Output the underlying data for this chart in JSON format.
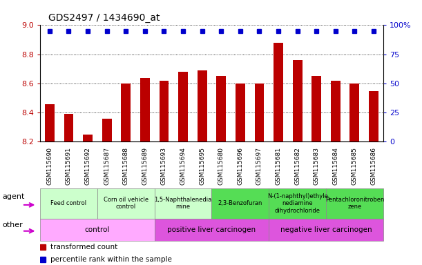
{
  "title": "GDS2497 / 1434690_at",
  "samples": [
    "GSM115690",
    "GSM115691",
    "GSM115692",
    "GSM115687",
    "GSM115688",
    "GSM115689",
    "GSM115693",
    "GSM115694",
    "GSM115695",
    "GSM115680",
    "GSM115696",
    "GSM115697",
    "GSM115681",
    "GSM115682",
    "GSM115683",
    "GSM115684",
    "GSM115685",
    "GSM115686"
  ],
  "bar_values": [
    8.46,
    8.39,
    8.25,
    8.36,
    8.6,
    8.64,
    8.62,
    8.68,
    8.69,
    8.65,
    8.6,
    8.6,
    8.88,
    8.76,
    8.65,
    8.62,
    8.6,
    8.55
  ],
  "percentile_values": [
    95,
    95,
    95,
    95,
    95,
    95,
    95,
    95,
    95,
    95,
    95,
    95,
    95,
    95,
    95,
    95,
    95,
    95
  ],
  "ylim": [
    8.2,
    9.0
  ],
  "yticks": [
    8.2,
    8.4,
    8.6,
    8.8,
    9.0
  ],
  "right_yticks_labels": [
    "0",
    "25",
    "50",
    "75",
    "100%"
  ],
  "right_yticks_vals": [
    0,
    25,
    50,
    75,
    100
  ],
  "right_ylim": [
    0,
    100
  ],
  "bar_color": "#bb0000",
  "percentile_color": "#0000cc",
  "agent_groups": [
    {
      "label": "Feed control",
      "start": 0,
      "end": 3,
      "color": "#ccffcc"
    },
    {
      "label": "Corn oil vehicle\ncontrol",
      "start": 3,
      "end": 6,
      "color": "#ccffcc"
    },
    {
      "label": "1,5-Naphthalenedia\nmine",
      "start": 6,
      "end": 9,
      "color": "#ccffcc"
    },
    {
      "label": "2,3-Benzofuran",
      "start": 9,
      "end": 12,
      "color": "#55dd55"
    },
    {
      "label": "N-(1-naphthyl)ethyle\nnediamine\ndihydrochloride",
      "start": 12,
      "end": 15,
      "color": "#55dd55"
    },
    {
      "label": "Pentachloronitroben\nzene",
      "start": 15,
      "end": 18,
      "color": "#55dd55"
    }
  ],
  "other_groups": [
    {
      "label": "control",
      "start": 0,
      "end": 6,
      "color": "#ffaaff"
    },
    {
      "label": "positive liver carcinogen",
      "start": 6,
      "end": 12,
      "color": "#dd55dd"
    },
    {
      "label": "negative liver carcinogen",
      "start": 12,
      "end": 18,
      "color": "#dd55dd"
    }
  ],
  "legend_red": "transformed count",
  "legend_blue": "percentile rank within the sample",
  "bar_width": 0.5
}
